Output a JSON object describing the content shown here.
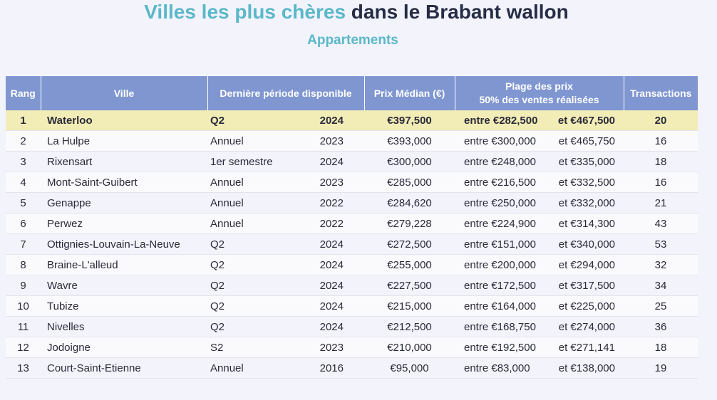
{
  "header": {
    "title_accent": "Villes les plus chères",
    "title_rest": " dans le Brabant wallon",
    "subtitle": "Appartements"
  },
  "table": {
    "columns": [
      "Rang",
      "Ville",
      "Dernière période disponible",
      "Prix Médian (€)",
      "Plage des prix",
      "50% des ventes réalisées",
      "Transactions"
    ],
    "rows": [
      {
        "rank": "1",
        "city": "Waterloo",
        "period": "Q2",
        "year": "2024",
        "price": "€397,500",
        "low": "entre €282,500",
        "high": "et €467,500",
        "tx": "20"
      },
      {
        "rank": "2",
        "city": "La Hulpe",
        "period": "Annuel",
        "year": "2023",
        "price": "€393,000",
        "low": "entre €300,000",
        "high": "et €465,750",
        "tx": "16"
      },
      {
        "rank": "3",
        "city": "Rixensart",
        "period": "1er semestre",
        "year": "2024",
        "price": "€300,000",
        "low": "entre €248,000",
        "high": "et €335,000",
        "tx": "18"
      },
      {
        "rank": "4",
        "city": "Mont-Saint-Guibert",
        "period": "Annuel",
        "year": "2023",
        "price": "€285,000",
        "low": "entre €216,500",
        "high": "et €332,500",
        "tx": "16"
      },
      {
        "rank": "5",
        "city": "Genappe",
        "period": "Annuel",
        "year": "2022",
        "price": "€284,620",
        "low": "entre €250,000",
        "high": "et €332,000",
        "tx": "21"
      },
      {
        "rank": "6",
        "city": "Perwez",
        "period": "Annuel",
        "year": "2022",
        "price": "€279,228",
        "low": "entre €224,900",
        "high": "et €314,300",
        "tx": "43"
      },
      {
        "rank": "7",
        "city": "Ottignies-Louvain-La-Neuve",
        "period": "Q2",
        "year": "2024",
        "price": "€272,500",
        "low": "entre €151,000",
        "high": "et €340,000",
        "tx": "53"
      },
      {
        "rank": "8",
        "city": "Braine-L'alleud",
        "period": "Q2",
        "year": "2024",
        "price": "€255,000",
        "low": "entre €200,000",
        "high": "et €294,000",
        "tx": "32"
      },
      {
        "rank": "9",
        "city": "Wavre",
        "period": "Q2",
        "year": "2024",
        "price": "€227,500",
        "low": "entre €172,500",
        "high": "et €317,500",
        "tx": "34"
      },
      {
        "rank": "10",
        "city": "Tubize",
        "period": "Q2",
        "year": "2024",
        "price": "€215,000",
        "low": "entre €164,000",
        "high": "et €225,000",
        "tx": "25"
      },
      {
        "rank": "11",
        "city": "Nivelles",
        "period": "Q2",
        "year": "2024",
        "price": "€212,500",
        "low": "entre €168,750",
        "high": "et €274,000",
        "tx": "36"
      },
      {
        "rank": "12",
        "city": "Jodoigne",
        "period": "S2",
        "year": "2023",
        "price": "€210,000",
        "low": "entre €192,500",
        "high": "et €271,141",
        "tx": "18"
      },
      {
        "rank": "13",
        "city": "Court-Saint-Etienne",
        "period": "Annuel",
        "year": "2016",
        "price": "€95,000",
        "low": "entre €83,000",
        "high": "et €138,000",
        "tx": "19"
      }
    ]
  },
  "colors": {
    "accent": "#5ab8c8",
    "title_dark": "#262d45",
    "header_bg": "#7f96d1",
    "highlight_row": "#f2ecb6",
    "page_bg": "#f3f3fc"
  }
}
